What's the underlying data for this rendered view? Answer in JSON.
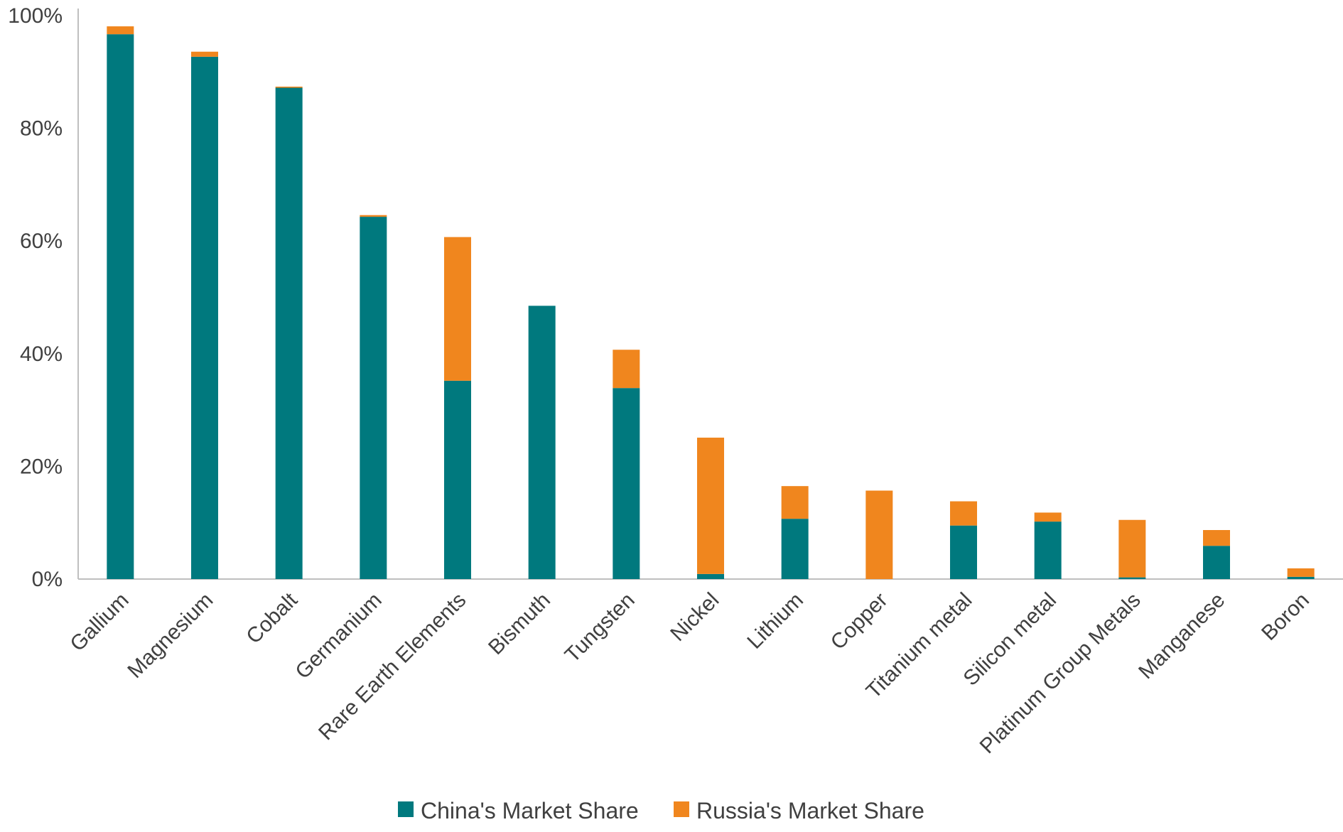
{
  "chart_data": {
    "type": "bar",
    "stacked": true,
    "title": "",
    "xlabel": "",
    "ylabel": "",
    "ylim": [
      0,
      100
    ],
    "yticks": [
      0,
      20,
      40,
      60,
      80,
      100
    ],
    "ytick_labels": [
      "0%",
      "20%",
      "40%",
      "60%",
      "80%",
      "100%"
    ],
    "grid": false,
    "legend_position": "bottom",
    "categories": [
      "Gallium",
      "Magnesium",
      "Cobalt",
      "Germanium",
      "Rare Earth Elements",
      "Bismuth",
      "Tungsten",
      "Nickel",
      "Lithium",
      "Copper",
      "Titanium metal",
      "Silicon metal",
      "Platinum Group Metals",
      "Manganese",
      "Boron"
    ],
    "series": [
      {
        "name": "China's Market Share",
        "color": "#00797e",
        "values": [
          96.7,
          92.7,
          87.2,
          64.3,
          35.2,
          48.5,
          33.9,
          0.9,
          10.7,
          0.0,
          9.5,
          10.2,
          0.3,
          5.9,
          0.4
        ]
      },
      {
        "name": "Russia's Market Share",
        "color": "#f0861e",
        "values": [
          1.4,
          0.9,
          0.2,
          0.3,
          25.5,
          0.0,
          6.8,
          24.2,
          5.8,
          15.7,
          4.3,
          1.6,
          10.2,
          2.8,
          1.5
        ]
      }
    ]
  }
}
